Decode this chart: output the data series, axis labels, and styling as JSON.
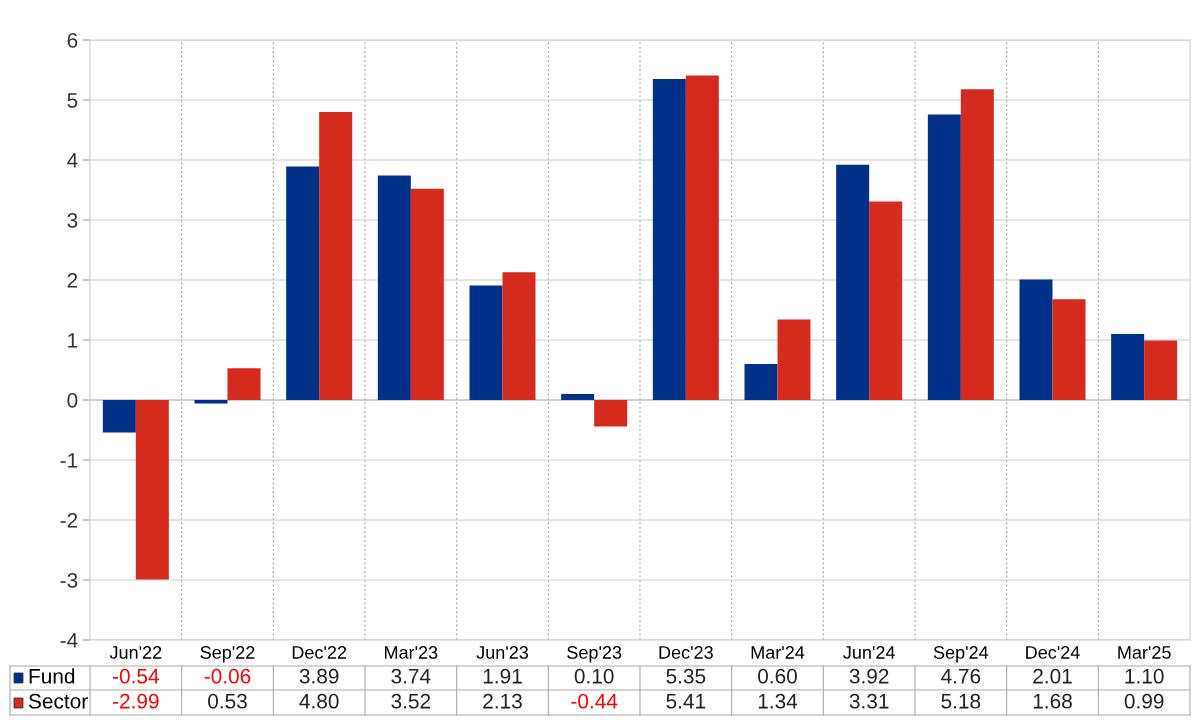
{
  "chart_data": {
    "type": "bar",
    "categories": [
      "Jun'22",
      "Sep'22",
      "Dec'22",
      "Mar'23",
      "Jun'23",
      "Sep'23",
      "Dec'23",
      "Mar'24",
      "Jun'24",
      "Sep'24",
      "Dec'24",
      "Mar'25"
    ],
    "series": [
      {
        "name": "Fund",
        "color": "#003189",
        "values": [
          -0.54,
          -0.06,
          3.89,
          3.74,
          1.91,
          0.1,
          5.35,
          0.6,
          3.92,
          4.76,
          2.01,
          1.1
        ],
        "value_labels": [
          "-0.54",
          "-0.06",
          "3.89",
          "3.74",
          "1.91",
          "0.10",
          "5.35",
          "0.60",
          "3.92",
          "4.76",
          "2.01",
          "1.10"
        ]
      },
      {
        "name": "Sector",
        "color": "#d52b1e",
        "values": [
          -2.99,
          0.53,
          4.8,
          3.52,
          2.13,
          -0.44,
          5.41,
          1.34,
          3.31,
          5.18,
          1.68,
          0.99
        ],
        "value_labels": [
          "-2.99",
          "0.53",
          "4.80",
          "3.52",
          "2.13",
          "-0.44",
          "5.41",
          "1.34",
          "3.31",
          "5.18",
          "1.68",
          "0.99"
        ]
      }
    ],
    "ylim": [
      -4,
      6
    ],
    "yticks": [
      -4,
      -3,
      -2,
      -1,
      0,
      1,
      2,
      3,
      4,
      5,
      6
    ],
    "grid": true,
    "legend": "bottom left"
  }
}
